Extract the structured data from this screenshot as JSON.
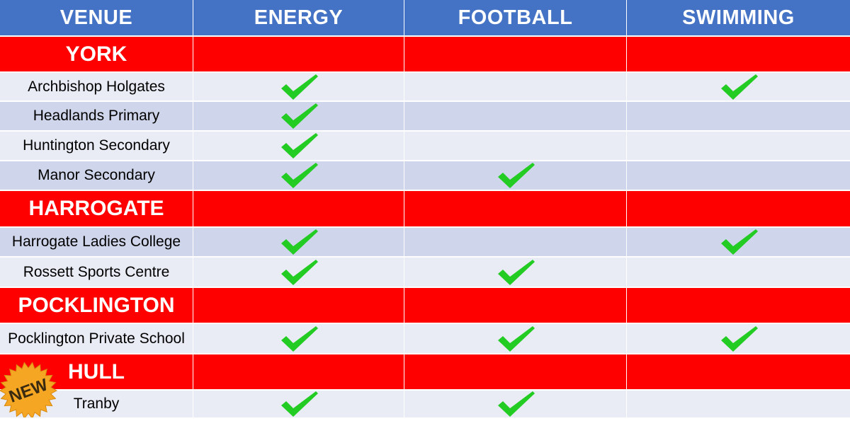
{
  "header": [
    "VENUE",
    "ENERGY",
    "FOOTBALL",
    "SWIMMING"
  ],
  "regions": {
    "york": "YORK",
    "harrogate": "HARROGATE",
    "pocklington": "POCKLINGTON",
    "hull": "HULL"
  },
  "venues": [
    {
      "name": "Archbishop Holgates",
      "energy": true,
      "football": false,
      "swimming": true
    },
    {
      "name": "Headlands Primary",
      "energy": true,
      "football": false,
      "swimming": false
    },
    {
      "name": "Huntington Secondary",
      "energy": true,
      "football": false,
      "swimming": false
    },
    {
      "name": "Manor Secondary",
      "energy": true,
      "football": true,
      "swimming": false
    },
    {
      "name": "Harrogate Ladies College",
      "energy": true,
      "football": false,
      "swimming": true
    },
    {
      "name": "Rossett Sports Centre",
      "energy": true,
      "football": true,
      "swimming": false
    },
    {
      "name": "Pocklington Private School",
      "energy": true,
      "football": true,
      "swimming": true
    },
    {
      "name": "Tranby",
      "energy": true,
      "football": true,
      "swimming": false
    }
  ],
  "badge": {
    "label": "NEW",
    "color": "#f5a623"
  },
  "colors": {
    "header": "#4472c4",
    "region": "#ff0000",
    "check": "#22cc22"
  },
  "icons": {
    "check": "check-icon",
    "badge": "starburst-badge-icon"
  }
}
